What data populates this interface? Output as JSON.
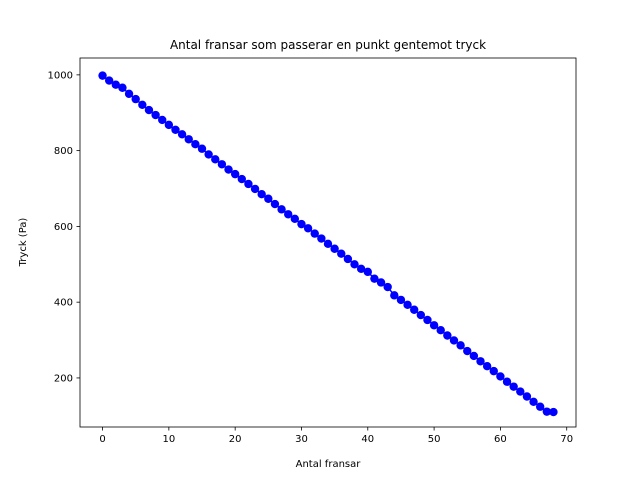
{
  "chart_data": {
    "type": "line",
    "title": "Antal fransar som passerar en punkt gentemot tryck",
    "xlabel": "Antal fransar",
    "ylabel": "Tryck (Pa)",
    "xlim": [
      -3.4,
      71.4
    ],
    "ylim": [
      70.5,
      1044.5
    ],
    "xticks": [
      0,
      10,
      20,
      30,
      40,
      50,
      60,
      70
    ],
    "yticks": [
      200,
      400,
      600,
      800,
      1000
    ],
    "grid": false,
    "marker": "circle",
    "series": [
      {
        "color": "#0000ff",
        "x": [
          0,
          1,
          2,
          3,
          4,
          5,
          6,
          7,
          8,
          9,
          10,
          11,
          12,
          13,
          14,
          15,
          16,
          17,
          18,
          19,
          20,
          21,
          22,
          23,
          24,
          25,
          26,
          27,
          28,
          29,
          30,
          31,
          32,
          33,
          34,
          35,
          36,
          37,
          38,
          39,
          40,
          41,
          42,
          43,
          44,
          45,
          46,
          47,
          48,
          49,
          50,
          51,
          52,
          53,
          54,
          55,
          56,
          57,
          58,
          59,
          60,
          61,
          62,
          63,
          64,
          65,
          66,
          67,
          68
        ],
        "y": [
          998,
          985,
          974,
          966,
          950,
          936,
          921,
          907,
          894,
          881,
          868,
          855,
          843,
          830,
          817,
          805,
          790,
          777,
          764,
          750,
          738,
          725,
          712,
          699,
          685,
          673,
          659,
          645,
          632,
          620,
          606,
          595,
          581,
          568,
          554,
          541,
          528,
          514,
          500,
          488,
          480,
          462,
          452,
          440,
          418,
          406,
          393,
          380,
          366,
          353,
          339,
          326,
          312,
          299,
          286,
          271,
          258,
          244,
          231,
          218,
          204,
          190,
          177,
          164,
          151,
          137,
          124,
          111,
          110
        ]
      }
    ]
  }
}
